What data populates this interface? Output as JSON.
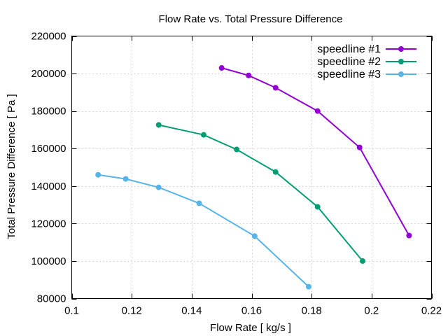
{
  "chart_data": {
    "type": "line",
    "title": "Flow Rate vs. Total Pressure Difference",
    "xlabel": "Flow Rate [ kg/s ]",
    "ylabel": "Total Pressure Difference [ Pa ]",
    "xlim": [
      0.1,
      0.22
    ],
    "ylim": [
      80000,
      220000
    ],
    "xticks": [
      0.1,
      0.12,
      0.14,
      0.16,
      0.18,
      0.2,
      0.22
    ],
    "xtick_labels": [
      "0.1",
      "0.12",
      "0.14",
      "0.16",
      "0.18",
      "0.2",
      "0.22"
    ],
    "yticks": [
      80000,
      100000,
      120000,
      140000,
      160000,
      180000,
      200000,
      220000
    ],
    "ytick_labels": [
      "80000",
      "100000",
      "120000",
      "140000",
      "160000",
      "180000",
      "200000",
      "220000"
    ],
    "grid": true,
    "legend_position": "top-right",
    "series": [
      {
        "name": "speedline #1",
        "color": "#9400d3",
        "x": [
          0.15,
          0.159,
          0.168,
          0.182,
          0.196,
          0.2125
        ],
        "y": [
          203000,
          199000,
          192400,
          180000,
          160600,
          113600
        ]
      },
      {
        "name": "speedline #2",
        "color": "#009e73",
        "x": [
          0.129,
          0.144,
          0.155,
          0.168,
          0.182,
          0.197
        ],
        "y": [
          172600,
          167300,
          159500,
          147500,
          128900,
          100000
        ]
      },
      {
        "name": "speedline #3",
        "color": "#56b4e9",
        "x": [
          0.1088,
          0.118,
          0.129,
          0.1425,
          0.161,
          0.179
        ],
        "y": [
          146000,
          143800,
          139300,
          130800,
          113300,
          86300
        ]
      }
    ]
  }
}
